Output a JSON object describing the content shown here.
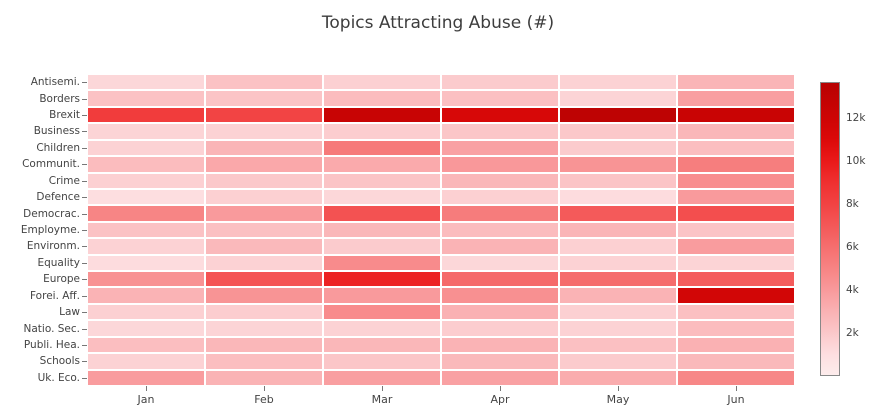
{
  "chart_data": {
    "type": "heatmap",
    "title": "Topics Attracting Abuse (#)",
    "x_labels": [
      "Jan",
      "Feb",
      "Mar",
      "Apr",
      "May",
      "Jun"
    ],
    "y_labels": [
      "Antisemi.",
      "Borders",
      "Brexit",
      "Business",
      "Children",
      "Communit.",
      "Crime",
      "Defence",
      "Democrac.",
      "Employme.",
      "Environm.",
      "Equality",
      "Europe",
      "Forei. Aff.",
      "Law",
      "Natio. Sec.",
      "Publi. Hea.",
      "Schools",
      "Uk. Eco."
    ],
    "values": [
      [
        1300,
        2200,
        1600,
        1800,
        1500,
        2800
      ],
      [
        2200,
        2100,
        2500,
        2300,
        1400,
        3800
      ],
      [
        8400,
        8000,
        12400,
        11400,
        13200,
        12300
      ],
      [
        1400,
        1500,
        1700,
        2000,
        1900,
        2700
      ],
      [
        1500,
        2800,
        5500,
        3700,
        1800,
        2400
      ],
      [
        2500,
        3400,
        3300,
        4100,
        4300,
        5300
      ],
      [
        1600,
        1900,
        2100,
        2700,
        2100,
        4600
      ],
      [
        1000,
        1600,
        1300,
        1600,
        1100,
        4000
      ],
      [
        5000,
        4000,
        7300,
        5400,
        6900,
        7500
      ],
      [
        2200,
        2300,
        2700,
        2500,
        2800,
        2100
      ],
      [
        1500,
        2600,
        1800,
        2900,
        1600,
        3900
      ],
      [
        1100,
        1500,
        4700,
        1300,
        1500,
        1400
      ],
      [
        4400,
        7200,
        9600,
        6200,
        6100,
        6800
      ],
      [
        2900,
        4300,
        4000,
        4500,
        2900,
        11700
      ],
      [
        1600,
        1700,
        4700,
        3000,
        1600,
        2300
      ],
      [
        1300,
        1400,
        1500,
        1700,
        1500,
        2500
      ],
      [
        2400,
        2700,
        2700,
        2900,
        2300,
        3000
      ],
      [
        1500,
        2400,
        2000,
        2600,
        1800,
        2600
      ],
      [
        3900,
        2900,
        3800,
        3700,
        3200,
        4900
      ]
    ],
    "scale_min": 0,
    "scale_max": 13700,
    "colorscale": [
      [
        0.0,
        253,
        236,
        236
      ],
      [
        0.073,
        253,
        222,
        224
      ],
      [
        0.146,
        251,
        198,
        200
      ],
      [
        0.219,
        250,
        177,
        179
      ],
      [
        0.292,
        249,
        154,
        156
      ],
      [
        0.365,
        247,
        133,
        133
      ],
      [
        0.438,
        245,
        110,
        110
      ],
      [
        0.511,
        244,
        88,
        88
      ],
      [
        0.584,
        242,
        68,
        68
      ],
      [
        0.657,
        239,
        48,
        48
      ],
      [
        0.73,
        234,
        26,
        26
      ],
      [
        0.803,
        221,
        10,
        10
      ],
      [
        0.876,
        205,
        4,
        4
      ],
      [
        1.0,
        184,
        2,
        2
      ]
    ],
    "colorbar_ticks": [
      {
        "label": "2k",
        "value": 2000
      },
      {
        "label": "4k",
        "value": 4000
      },
      {
        "label": "6k",
        "value": 6000
      },
      {
        "label": "8k",
        "value": 8000
      },
      {
        "label": "10k",
        "value": 10000
      },
      {
        "label": "12k",
        "value": 12000
      }
    ],
    "legend_position": "right",
    "grid": false,
    "background_color": "#ffffff",
    "text_color": "#444444"
  }
}
